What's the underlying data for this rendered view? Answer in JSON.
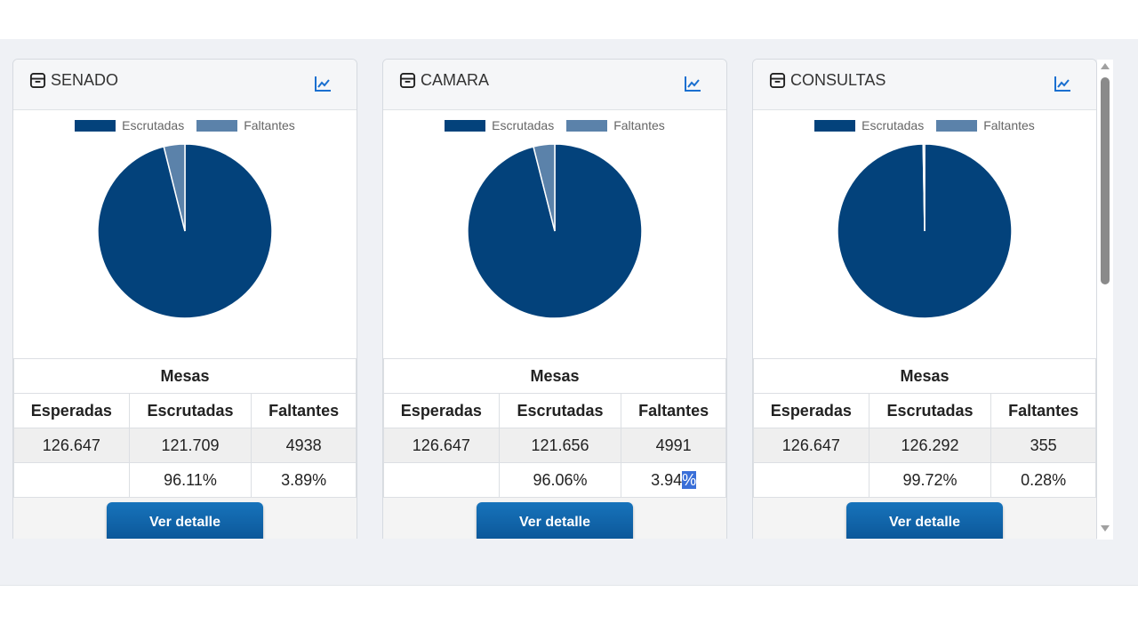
{
  "colors": {
    "escrutadas": "#03427b",
    "faltantes": "#5b82aa",
    "accent": "#1a6fd0"
  },
  "legend": {
    "escrutadas": "Escrutadas",
    "faltantes": "Faltantes"
  },
  "table_headers": {
    "mesas": "Mesas",
    "esperadas": "Esperadas",
    "escrutadas": "Escrutadas",
    "faltantes": "Faltantes"
  },
  "button_label": "Ver detalle",
  "cards": [
    {
      "title": "SENADO",
      "esperadas": "126.647",
      "escrutadas": "121.709",
      "faltantes": "4938",
      "pct_escrutadas": "96.11%",
      "pct_faltantes": "3.89%"
    },
    {
      "title": "CAMARA",
      "esperadas": "126.647",
      "escrutadas": "121.656",
      "faltantes": "4991",
      "pct_escrutadas": "96.06%",
      "pct_faltantes_a": "3.94",
      "pct_faltantes_b": "%"
    },
    {
      "title": "CONSULTAS",
      "esperadas": "126.647",
      "escrutadas": "126.292",
      "faltantes": "355",
      "pct_escrutadas": "99.72%",
      "pct_faltantes": "0.28%"
    }
  ],
  "chart_data": [
    {
      "type": "pie",
      "title": "SENADO",
      "categories": [
        "Escrutadas",
        "Faltantes"
      ],
      "values": [
        121709,
        4938
      ]
    },
    {
      "type": "pie",
      "title": "CAMARA",
      "categories": [
        "Escrutadas",
        "Faltantes"
      ],
      "values": [
        121656,
        4991
      ]
    },
    {
      "type": "pie",
      "title": "CONSULTAS",
      "categories": [
        "Escrutadas",
        "Faltantes"
      ],
      "values": [
        126292,
        355
      ]
    }
  ]
}
